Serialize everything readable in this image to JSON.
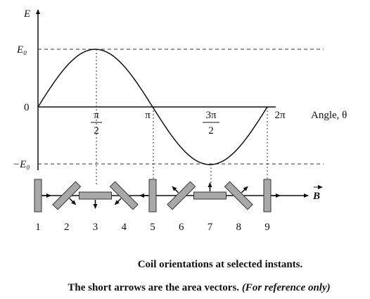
{
  "axis": {
    "y_label": "E",
    "x_label": "Angle, θ"
  },
  "y_ticks": [
    "E₀",
    "0",
    "−E₀"
  ],
  "x_ticks": [
    {
      "numerator": "π",
      "denominator": "2"
    },
    "π",
    {
      "numerator": "3π",
      "denominator": "2"
    },
    "2π"
  ],
  "field_label": "B",
  "coils": [
    "1",
    "2",
    "3",
    "4",
    "5",
    "6",
    "7",
    "8",
    "9"
  ],
  "caption": {
    "line1": "Coil orientations at selected instants.",
    "line2": "The short arrows are the area vectors.",
    "line2_note": "(For reference only)"
  }
}
